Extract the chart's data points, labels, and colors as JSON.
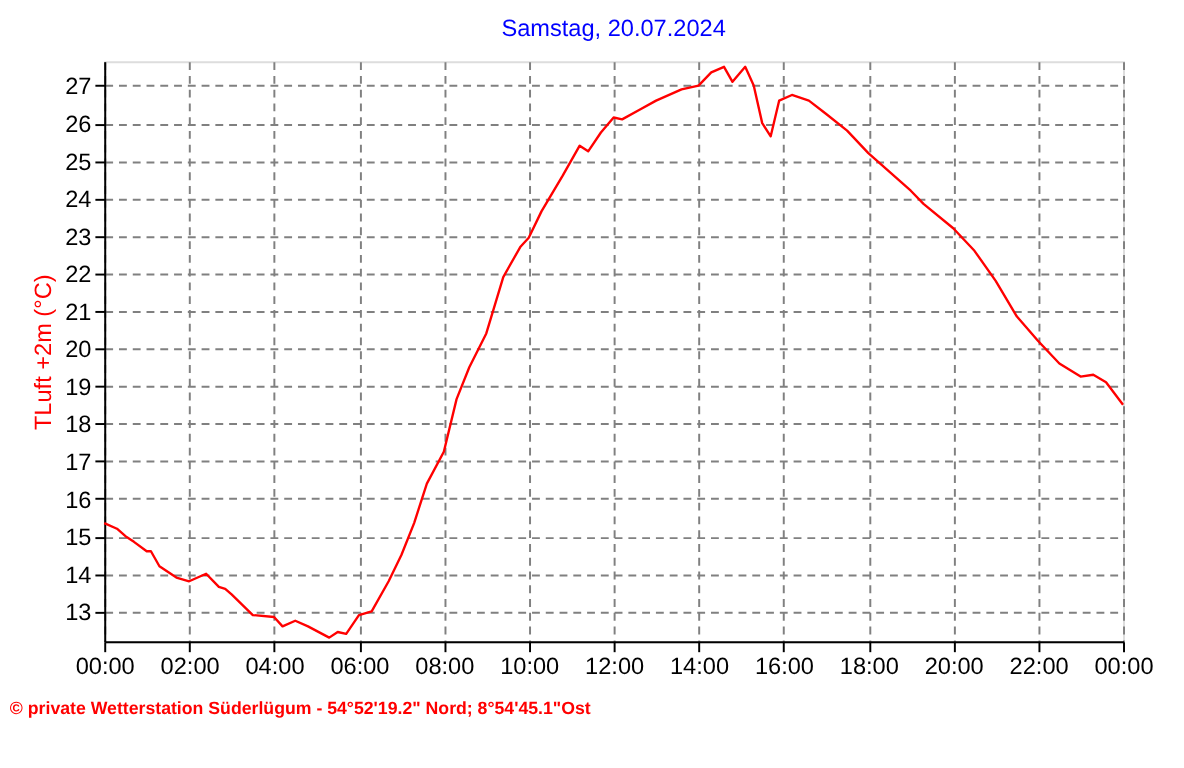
{
  "chart_data": {
    "type": "line",
    "title": "Samstag, 20.07.2024",
    "ylabel": "TLuft +2m (°C)",
    "annotations": [
      "© private Wetterstation Süderlügum - 54°52'19.2\" Nord; 8°54'45.1\"Ost"
    ],
    "x": [
      0,
      0.3,
      0.5,
      0.7,
      1.0,
      1.1,
      1.3,
      1.7,
      2.0,
      2.4,
      2.7,
      2.85,
      3.0,
      3.5,
      4.0,
      4.2,
      4.5,
      4.8,
      5.3,
      5.5,
      5.7,
      6.0,
      6.3,
      6.7,
      7.0,
      7.3,
      7.6,
      8.0,
      8.3,
      8.6,
      9.0,
      9.4,
      9.8,
      10.0,
      10.3,
      10.8,
      11.2,
      11.4,
      11.7,
      12.0,
      12.2,
      12.6,
      13.0,
      13.6,
      14.0,
      14.3,
      14.6,
      14.8,
      15.1,
      15.3,
      15.5,
      15.7,
      15.9,
      16.2,
      16.6,
      17.0,
      17.5,
      18.0,
      18.5,
      19.0,
      19.3,
      20.0,
      20.5,
      21.0,
      21.5,
      22.0,
      22.5,
      23.0,
      23.3,
      23.6,
      24.0
    ],
    "series": [
      {
        "color": "#ff0000",
        "values": [
          15.35,
          15.2,
          15.0,
          14.85,
          14.6,
          14.6,
          14.2,
          13.9,
          13.8,
          14.0,
          13.65,
          13.6,
          13.45,
          12.9,
          12.85,
          12.6,
          12.75,
          12.6,
          12.3,
          12.45,
          12.4,
          12.9,
          13.0,
          13.8,
          14.5,
          15.35,
          16.4,
          17.25,
          18.65,
          19.5,
          20.4,
          21.9,
          22.7,
          22.95,
          23.65,
          24.6,
          25.4,
          25.25,
          25.75,
          26.15,
          26.1,
          26.35,
          26.6,
          26.9,
          27.0,
          27.35,
          27.5,
          27.1,
          27.5,
          27.0,
          26.0,
          25.65,
          26.6,
          26.75,
          26.6,
          26.25,
          25.8,
          25.2,
          24.7,
          24.2,
          23.85,
          23.2,
          22.6,
          21.8,
          20.85,
          20.2,
          19.6,
          19.25,
          19.3,
          19.1,
          18.5
        ]
      }
    ],
    "xlim": [
      0,
      24
    ],
    "xticks": [
      {
        "value": 0,
        "label": "00:00"
      },
      {
        "value": 2,
        "label": "02:00"
      },
      {
        "value": 4,
        "label": "04:00"
      },
      {
        "value": 6,
        "label": "06:00"
      },
      {
        "value": 8,
        "label": "08:00"
      },
      {
        "value": 10,
        "label": "10:00"
      },
      {
        "value": 12,
        "label": "12:00"
      },
      {
        "value": 14,
        "label": "14:00"
      },
      {
        "value": 16,
        "label": "16:00"
      },
      {
        "value": 18,
        "label": "18:00"
      },
      {
        "value": 20,
        "label": "20:00"
      },
      {
        "value": 22,
        "label": "22:00"
      },
      {
        "value": 24,
        "label": "00:00"
      }
    ],
    "ylim": [
      12.2,
      27.65
    ],
    "yticks": [
      13,
      14,
      15,
      16,
      17,
      18,
      19,
      20,
      21,
      22,
      23,
      24,
      25,
      26,
      27
    ],
    "grid": true,
    "marker": "none",
    "line_style": "solid",
    "legend": false
  }
}
